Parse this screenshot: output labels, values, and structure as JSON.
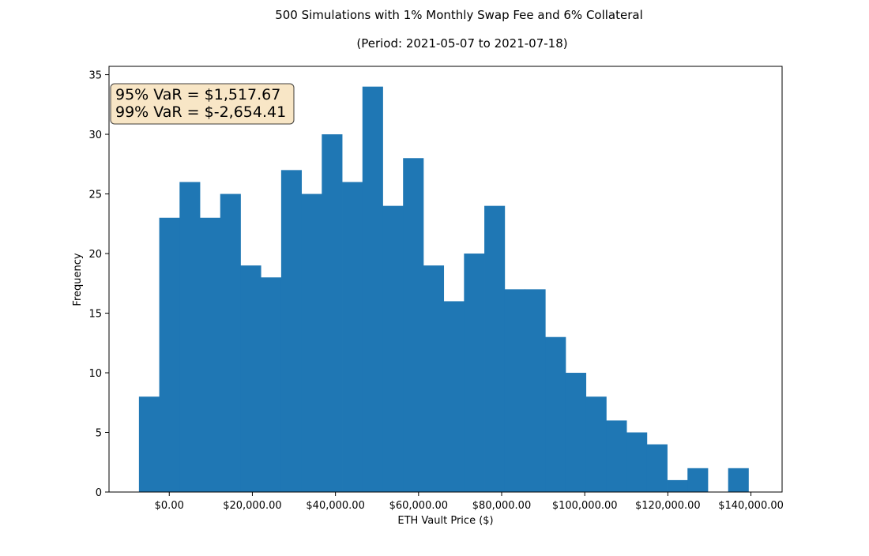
{
  "chart_data": {
    "type": "bar",
    "title": "500 Simulations with 1% Monthly Swap Fee and 6% Collateral",
    "subtitle": "(Period: 2021-05-07 to 2021-07-18)",
    "xlabel": "ETH Vault Price ($)",
    "ylabel": "Frequency",
    "xlim": [
      -14500,
      147500
    ],
    "ylim": [
      0,
      35.7
    ],
    "x_ticks": [
      0,
      20000,
      40000,
      60000,
      80000,
      100000,
      120000,
      140000
    ],
    "x_tick_labels": [
      "$0.00",
      "$20,000.00",
      "$40,000.00",
      "$60,000.00",
      "$80,000.00",
      "$100,000.00",
      "$120,000.00",
      "$140,000.00"
    ],
    "y_ticks": [
      0,
      5,
      10,
      15,
      20,
      25,
      30,
      35
    ],
    "y_tick_labels": [
      "0",
      "5",
      "10",
      "15",
      "20",
      "25",
      "30",
      "35"
    ],
    "bins": {
      "start": -7300,
      "width": 4890,
      "counts": [
        8,
        23,
        26,
        23,
        25,
        19,
        18,
        27,
        25,
        30,
        26,
        34,
        24,
        28,
        19,
        16,
        20,
        24,
        17,
        17,
        13,
        10,
        8,
        6,
        5,
        4,
        1,
        2,
        0,
        2
      ]
    },
    "bar_color": "#1f77b4",
    "grid": false,
    "legend": "none",
    "annotation": {
      "lines": [
        "95% VaR = $1,517.67",
        "99% VaR = $-2,654.41"
      ],
      "placement": "top-left",
      "background": "#f5deb3"
    }
  }
}
